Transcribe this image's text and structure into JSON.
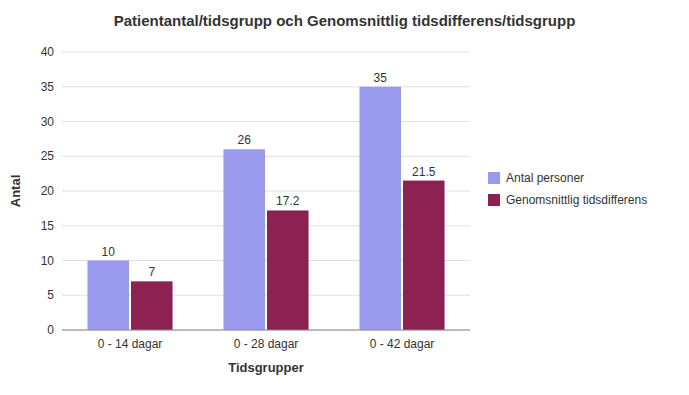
{
  "chart_data": {
    "type": "bar",
    "title": "Patientantal/tidsgrupp och Genomsnittlig tidsdifferens/tidsgrupp",
    "xlabel": "Tidsgrupper",
    "ylabel": "Antal",
    "categories": [
      "0 - 14 dagar",
      "0 - 28 dagar",
      "0 - 42 dagar"
    ],
    "series": [
      {
        "name": "Antal personer",
        "color": "#9999ee",
        "values": [
          10,
          26,
          35
        ]
      },
      {
        "name": "Genomsnittlig tidsdifferens",
        "color": "#8B2252",
        "values": [
          7,
          17.2,
          21.5
        ]
      }
    ],
    "ylim": [
      0,
      40
    ],
    "yticks": [
      0,
      5,
      10,
      15,
      20,
      25,
      30,
      35,
      40
    ],
    "grid": true,
    "legend": "right",
    "data_labels": true
  }
}
